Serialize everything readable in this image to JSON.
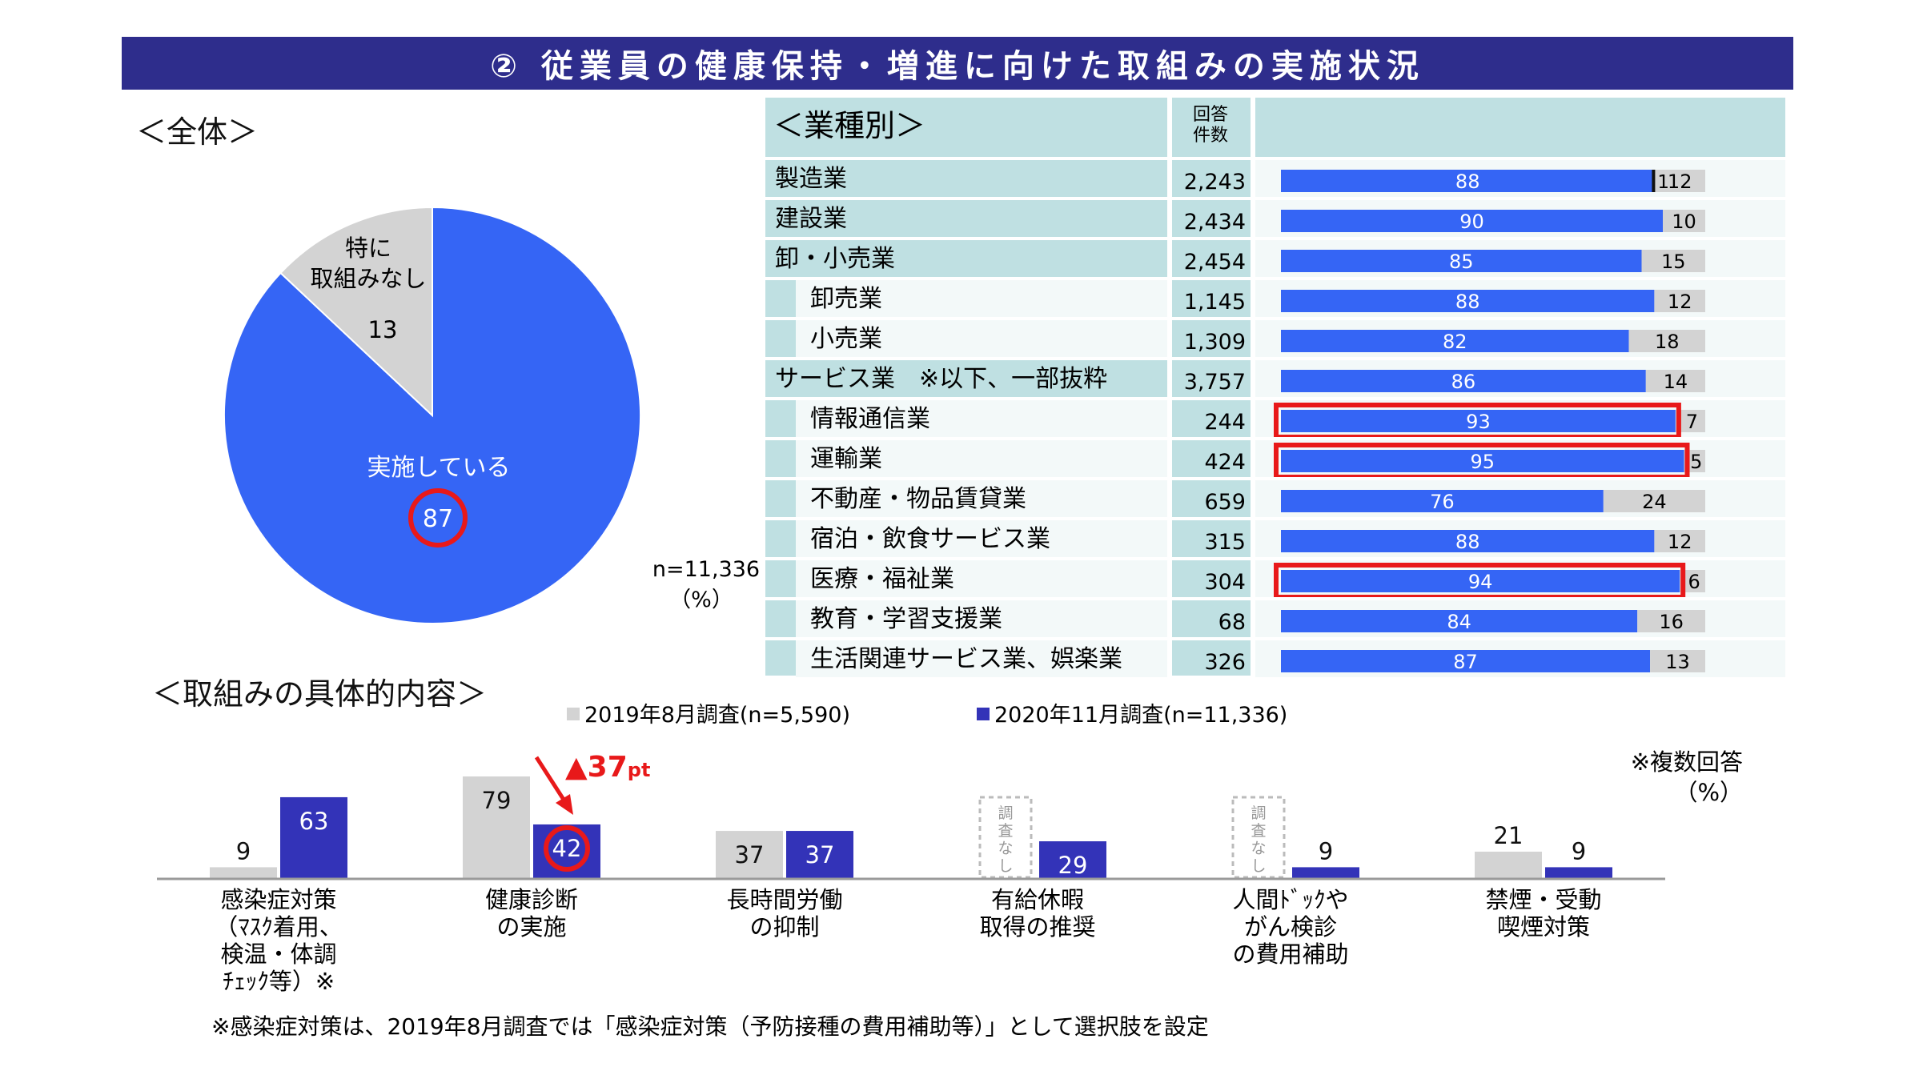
{
  "title": "② 従業員の健康保持・増進に向けた取組みの実施状況",
  "overall": {
    "label": "＜全体＞",
    "n_text": "n=11,336",
    "unit_text": "（%）"
  },
  "industry": {
    "label": "＜業種別＞",
    "count_header": [
      "回答",
      "件数"
    ]
  },
  "specific": {
    "label": "＜取組みの具体的内容＞",
    "note": "※複数回答",
    "unit": "（%）",
    "footnote": "※感染症対策は、2019年8月調査では「感染症対策（予防接種の費用補助等）」として選択肢を設定",
    "diff_value": "▲37",
    "diff_unit": "pt",
    "not_surveyed": [
      "調",
      "査",
      "な",
      "し"
    ]
  },
  "colors": {
    "blue": "#3565f5",
    "navy": "#3333b8",
    "gray": "#d3d3d3",
    "teal": "#bfe0e2",
    "highlight": "#e8191a",
    "title_bg": "#2e2d8c"
  },
  "chart_data": [
    {
      "type": "pie",
      "slices": [
        {
          "label": "実施している",
          "value": 87,
          "color": "#3565f5"
        },
        {
          "label": "特に取組みなし",
          "label_lines": [
            "特に",
            "取組みなし"
          ],
          "value": 13,
          "color": "#d3d3d3"
        }
      ]
    },
    {
      "type": "bar",
      "stacked": true,
      "orientation": "horizontal",
      "rows": [
        {
          "name": "製造業",
          "n": "2,243",
          "implemented": 88,
          "middle": 1,
          "none": 12,
          "indent": 0
        },
        {
          "name": "建設業",
          "n": "2,434",
          "implemented": 90,
          "none": 10,
          "indent": 0
        },
        {
          "name": "卸・小売業",
          "n": "2,454",
          "implemented": 85,
          "none": 15,
          "indent": 0
        },
        {
          "name": "卸売業",
          "n": "1,145",
          "implemented": 88,
          "none": 12,
          "indent": 1
        },
        {
          "name": "小売業",
          "n": "1,309",
          "implemented": 82,
          "none": 18,
          "indent": 1
        },
        {
          "name": "サービス業　※以下、一部抜粋",
          "n": "3,757",
          "implemented": 86,
          "none": 14,
          "indent": 0
        },
        {
          "name": "情報通信業",
          "n": "244",
          "implemented": 93,
          "none": 7,
          "indent": 1,
          "highlight": true
        },
        {
          "name": "運輸業",
          "n": "424",
          "implemented": 95,
          "none": 5,
          "indent": 1,
          "highlight": true
        },
        {
          "name": "不動産・物品賃貸業",
          "n": "659",
          "implemented": 76,
          "none": 24,
          "indent": 1
        },
        {
          "name": "宿泊・飲食サービス業",
          "n": "315",
          "implemented": 88,
          "none": 12,
          "indent": 1
        },
        {
          "name": "医療・福祉業",
          "n": "304",
          "implemented": 94,
          "none": 6,
          "indent": 1,
          "highlight": true
        },
        {
          "name": "教育・学習支援業",
          "n": "68",
          "implemented": 84,
          "none": 16,
          "indent": 1
        },
        {
          "name": "生活関連サービス業、娯楽業",
          "n": "326",
          "implemented": 87,
          "none": 13,
          "indent": 1
        }
      ]
    },
    {
      "type": "bar",
      "categories": [
        [
          "感染症対策",
          "（ﾏｽｸ着用、",
          "検温・体調",
          "ﾁｪｯｸ等）※"
        ],
        [
          "健康診断",
          "の実施"
        ],
        [
          "長時間労働",
          "の抑制"
        ],
        [
          "有給休暇",
          "取得の推奨"
        ],
        [
          "人間ﾄﾞｯｸや",
          "がん検診",
          "の費用補助"
        ],
        [
          "禁煙・受動",
          "喫煙対策"
        ]
      ],
      "series": [
        {
          "name": "2019年8月調査(n=5,590)",
          "values": [
            9,
            79,
            37,
            null,
            null,
            21
          ],
          "color": "#d3d3d3"
        },
        {
          "name": "2020年11月調査(n=11,336)",
          "values": [
            63,
            42,
            37,
            29,
            9,
            9
          ],
          "color": "#3333b8"
        }
      ],
      "ylim": [
        0,
        100
      ]
    }
  ]
}
